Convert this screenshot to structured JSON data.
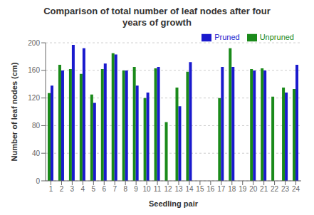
{
  "chart_data": {
    "type": "bar",
    "title": "Comparison of total number of leaf nodes after four\nyears of growth",
    "xlabel": "Seedling pair",
    "ylabel": "Number of leaf nodes (cm)",
    "categories": [
      "1",
      "2",
      "3",
      "4",
      "5",
      "6",
      "7",
      "8",
      "9",
      "10",
      "11",
      "12",
      "13",
      "14",
      "15",
      "16",
      "17",
      "18",
      "19",
      "20",
      "21",
      "22",
      "23",
      "24"
    ],
    "series": [
      {
        "name": "Unpruned",
        "color": "#1a8a1a",
        "values": [
          127,
          168,
          162,
          155,
          125,
          162,
          185,
          160,
          165,
          120,
          163,
          85,
          135,
          158,
          0,
          0,
          120,
          192,
          0,
          162,
          163,
          122,
          135,
          133
        ]
      },
      {
        "name": "Pruned",
        "color": "#1a1acd",
        "values": [
          138,
          160,
          197,
          192,
          113,
          170,
          183,
          160,
          138,
          128,
          165,
          0,
          108,
          172,
          0,
          0,
          165,
          165,
          0,
          160,
          160,
          0,
          128,
          168
        ]
      }
    ],
    "ylim": [
      0,
      200
    ],
    "yticks": [
      0,
      40,
      80,
      120,
      160,
      200
    ],
    "grid": true,
    "legend": "upper right"
  }
}
